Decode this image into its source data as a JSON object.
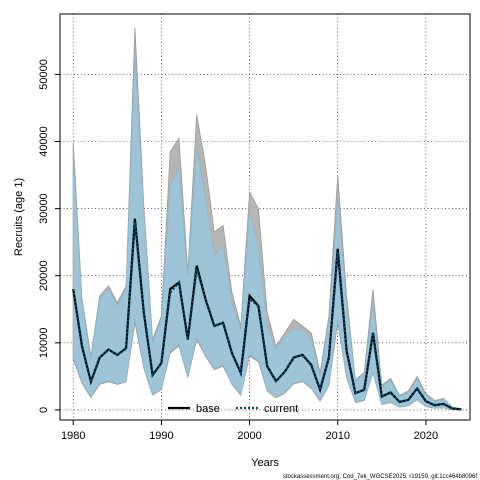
{
  "chart_data": {
    "type": "line",
    "xlabel": "Years",
    "ylabel": "Recruits (age 1)",
    "xlim": [
      1978.5,
      2025
    ],
    "ylim": [
      -1500,
      59000
    ],
    "x_ticks": [
      1980,
      1990,
      2000,
      2010,
      2020
    ],
    "y_ticks": [
      0,
      10000,
      20000,
      30000,
      40000,
      50000
    ],
    "grid": true,
    "legend_position": "bottom-center",
    "colors": {
      "base_line": "#000000",
      "base_band": "#b5b5b5",
      "current_line": "#004c6c",
      "current_band": "#9ec5d7"
    },
    "x": [
      1980,
      1981,
      1982,
      1983,
      1984,
      1985,
      1986,
      1987,
      1988,
      1989,
      1990,
      1991,
      1992,
      1993,
      1994,
      1995,
      1996,
      1997,
      1998,
      1999,
      2000,
      2001,
      2002,
      2003,
      2004,
      2005,
      2006,
      2007,
      2008,
      2009,
      2010,
      2011,
      2012,
      2013,
      2014,
      2015,
      2016,
      2017,
      2018,
      2019,
      2020,
      2021,
      2022,
      2023,
      2024
    ],
    "series": [
      {
        "name": "base",
        "values": [
          18000,
          9500,
          4200,
          7800,
          9000,
          8200,
          9200,
          28500,
          14500,
          5200,
          7000,
          18000,
          19000,
          10500,
          21500,
          16500,
          12500,
          13000,
          8500,
          5500,
          17000,
          15500,
          6500,
          4300,
          5700,
          7800,
          8200,
          6700,
          3000,
          7800,
          24000,
          8800,
          2500,
          3000,
          11500,
          2000,
          2600,
          1200,
          1500,
          3200,
          1300,
          700,
          900,
          200,
          100
        ],
        "lower": [
          7500,
          4000,
          1800,
          3800,
          4200,
          3800,
          4200,
          13000,
          6200,
          2200,
          3000,
          8500,
          9500,
          4800,
          10500,
          8000,
          6000,
          6500,
          3800,
          2200,
          8000,
          7200,
          2800,
          1800,
          2500,
          3900,
          4200,
          3200,
          1300,
          3600,
          13000,
          4800,
          1100,
          1400,
          5500,
          800,
          1100,
          400,
          600,
          1500,
          500,
          250,
          300,
          50,
          20
        ],
        "upper": [
          40000,
          16500,
          8000,
          17000,
          18500,
          16000,
          18500,
          57000,
          30500,
          10500,
          14000,
          38500,
          40500,
          20500,
          44000,
          36500,
          26500,
          27500,
          17500,
          12500,
          32500,
          30000,
          14500,
          9500,
          11500,
          13500,
          12500,
          11500,
          5500,
          14000,
          35000,
          17000,
          4500,
          5600,
          18000,
          3700,
          4700,
          2200,
          2800,
          5000,
          2400,
          1400,
          1700,
          400,
          200
        ]
      },
      {
        "name": "current",
        "values": [
          18000,
          9500,
          4200,
          7800,
          9000,
          8200,
          9200,
          28000,
          14500,
          5200,
          7000,
          17500,
          19000,
          10500,
          21000,
          16500,
          12500,
          13000,
          8500,
          5500,
          16500,
          15500,
          6500,
          4300,
          5700,
          7800,
          8200,
          6700,
          3000,
          7800,
          23500,
          8800,
          2500,
          3000,
          11500,
          2000,
          2600,
          1200,
          1500,
          3200,
          1300,
          700,
          900,
          200,
          100
        ],
        "lower": [
          7800,
          4200,
          1900,
          4000,
          4400,
          3900,
          4300,
          13500,
          6400,
          2300,
          3100,
          8800,
          9700,
          5000,
          10800,
          8200,
          6200,
          6700,
          3900,
          2300,
          8200,
          7400,
          2900,
          1900,
          2600,
          4000,
          4300,
          3300,
          1400,
          3700,
          13500,
          4900,
          1200,
          1500,
          5600,
          850,
          1150,
          450,
          650,
          1550,
          550,
          280,
          330,
          60,
          25
        ],
        "upper": [
          38000,
          16000,
          7500,
          16500,
          18000,
          15500,
          18000,
          53000,
          29500,
          10000,
          13500,
          33500,
          36000,
          20000,
          39000,
          31500,
          23000,
          24500,
          16000,
          12000,
          29500,
          24500,
          12500,
          9000,
          11000,
          12000,
          12000,
          10500,
          5000,
          13000,
          31500,
          16000,
          4300,
          5200,
          16000,
          3500,
          4400,
          2000,
          2600,
          4600,
          2200,
          1300,
          1600,
          380,
          180
        ]
      }
    ]
  },
  "legend": [
    {
      "label": "base",
      "style": "solid"
    },
    {
      "label": "current",
      "style": "dotted"
    }
  ],
  "footer_note": "stockassessment.org, Cod_7ek_WGCSE2025, r19159, git:1cc464b8096f"
}
